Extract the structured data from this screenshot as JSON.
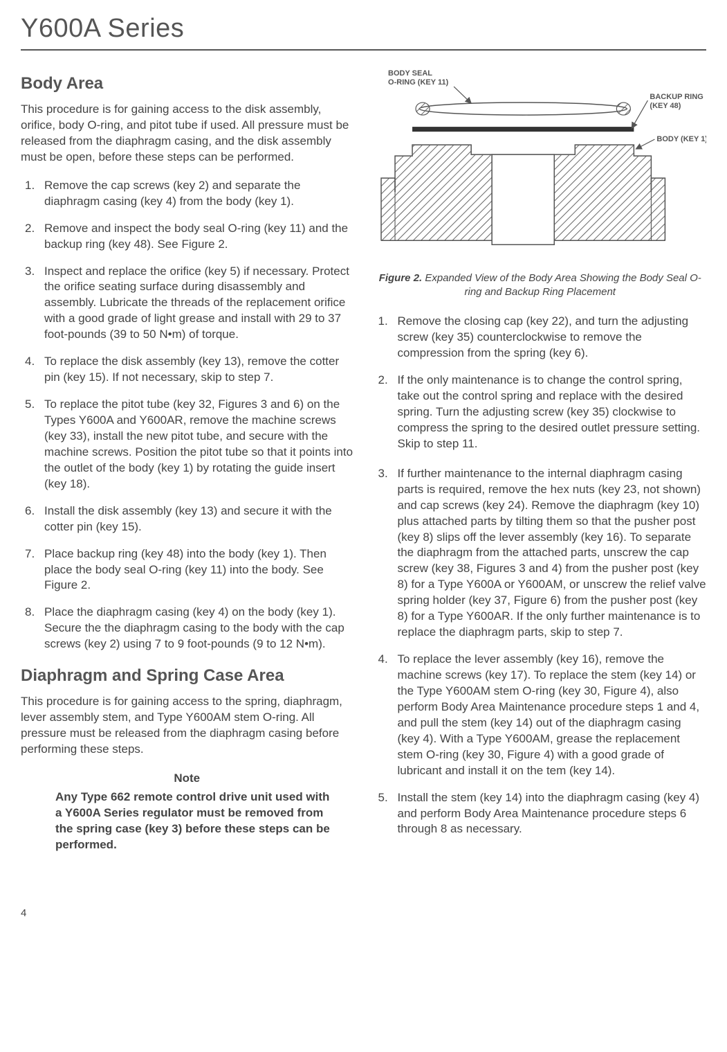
{
  "series_title": "Y600A Series",
  "section1": {
    "heading": "Body Area",
    "intro": "This procedure is for gaining access to the disk assembly, orifice, body O-ring, and pitot tube if used. All pressure must be released from the diaphragm casing, and the disk assembly must be open, before these steps can be performed.",
    "steps": [
      "Remove the cap screws (key 2) and separate the diaphragm casing (key 4) from the body (key 1).",
      "Remove and inspect the body seal O-ring (key 11) and the backup ring (key 48).  See Figure 2.",
      "Inspect and replace the orifice (key 5) if necessary.  Protect the orifice seating surface during disassembly and assembly.  Lubricate the threads of the replacement orifice with a good grade of light grease and install with 29 to 37 foot-pounds (39 to 50 N•m) of torque.",
      "To replace the disk assembly (key 13), remove the cotter pin (key 15).  If not necessary, skip to step 7.",
      "To replace the pitot tube (key 32, Figures 3 and 6) on the Types Y600A and Y600AR, remove the machine screws (key 33), install the new pitot tube, and secure with the machine screws.  Position the pitot tube so that it points into the outlet of the body (key 1) by rotating the guide insert (key 18).",
      "Install the disk assembly (key 13) and secure it with the cotter pin (key 15).",
      "Place backup ring (key 48) into the body (key 1).  Then place the body seal O-ring (key 11) into the body.  See Figure 2.",
      "Place the diaphragm casing (key 4) on the body (key 1).  Secure the the diaphragm casing to the body with the cap screws (key 2) using 7 to 9 foot-pounds (9 to 12 N•m)."
    ]
  },
  "section2": {
    "heading": "Diaphragm and Spring Case Area",
    "intro": "This procedure is for gaining access to the spring, diaphragm, lever assembly stem, and Type Y600AM stem O-ring.  All pressure must be released from the diaphragm casing before performing these steps.",
    "note_heading": "Note",
    "note_body": "Any Type 662 remote control drive unit used with a Y600A Series regulator must be removed from the spring case (key 3) before these steps can be performed.",
    "steps_a": [
      "Remove the closing cap (key 22), and turn the adjusting screw (key 35) counterclockwise to remove the compression from the spring (key 6).",
      "If the only maintenance is to change the control spring, take out the control spring and replace with the desired spring.  Turn the adjusting screw (key 35) clockwise to compress the spring to the desired outlet pressure setting.  Skip to step 11."
    ],
    "steps_b": [
      "If further maintenance to the internal diaphragm casing parts is required, remove the hex nuts (key 23, not shown) and cap screws (key 24).  Remove the diaphragm (key 10) plus attached parts by tilting them so that the pusher post (key 8) slips off the lever assembly (key 16).  To separate the diaphragm from the attached parts, unscrew the cap screw (key 38, Figures 3 and 4) from the pusher post (key 8) for a Type Y600A or Y600AM, or unscrew the relief valve spring holder (key 37, Figure 6) from the pusher post (key 8) for a Type Y600AR.  If the only further maintenance is to replace the diaphragm parts, skip to step 7.",
      "To replace the lever assembly (key 16), remove the machine screws (key 17).  To replace the stem (key 14) or the Type Y600AM stem O-ring (key 30, Figure 4), also perform Body Area Maintenance procedure steps 1 and 4, and pull the stem (key 14) out of the diaphragm casing (key 4).  With a Type Y600AM, grease the replacement stem O-ring (key 30, Figure 4) with a good grade of lubricant and install it on the tem (key 14).",
      "Install the stem (key 14) into the diaphragm casing (key 4) and perform Body Area Maintenance procedure steps 6 through 8 as necessary."
    ]
  },
  "figure": {
    "label_oring": "BODY SEAL\nO-RING (KEY 11)",
    "label_backup": "BACKUP RING\n(KEY 48)",
    "label_body": "BODY (KEY 1)",
    "caption_bold": "Figure 2.",
    "caption_rest": "  Expanded View of the Body Area Showing the Body Seal O-ring and Backup Ring Placement",
    "colors": {
      "stroke": "#555",
      "fill_hatch": "#555",
      "bg": "#fff"
    }
  },
  "page_number": "4"
}
